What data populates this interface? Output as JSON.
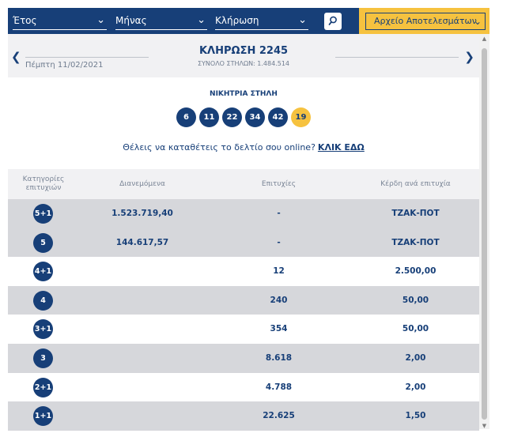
{
  "filters": {
    "year_label": "Έτος",
    "month_label": "Μήνας",
    "draw_label": "Κλήρωση",
    "archive_label": "Αρχείο Αποτελεσμάτων"
  },
  "draw": {
    "date": "Πέμπτη 11/02/2021",
    "title": "ΚΛΗΡΩΣΗ 2245",
    "total_columns": "ΣΥΝΟΛΟ ΣΤΗΛΩΝ: 1.484.514"
  },
  "winning": {
    "title": "ΝΙΚΗΤΡΙΑ ΣΤΗΛΗ",
    "numbers": [
      "6",
      "11",
      "22",
      "34",
      "42"
    ],
    "bonus": "19"
  },
  "promo": {
    "text": "Θέλεις να καταθέτεις το δελτίο σου online?",
    "link": "ΚΛΙΚ ΕΔΩ"
  },
  "table": {
    "headers": {
      "category": "Κατηγορίες επιτυχιών",
      "distributed": "Διανεμόμενα",
      "winners": "Επιτυχίες",
      "prize": "Κέρδη ανά επιτυχία"
    },
    "rows": [
      {
        "category": "5+1",
        "distributed": "1.523.719,40",
        "winners": "-",
        "prize": "ΤΖΑΚ-ΠΟΤ"
      },
      {
        "category": "5",
        "distributed": "144.617,57",
        "winners": "-",
        "prize": "ΤΖΑΚ-ΠΟΤ"
      },
      {
        "category": "4+1",
        "distributed": "",
        "winners": "12",
        "prize": "2.500,00"
      },
      {
        "category": "4",
        "distributed": "",
        "winners": "240",
        "prize": "50,00"
      },
      {
        "category": "3+1",
        "distributed": "",
        "winners": "354",
        "prize": "50,00"
      },
      {
        "category": "3",
        "distributed": "",
        "winners": "8.618",
        "prize": "2,00"
      },
      {
        "category": "2+1",
        "distributed": "",
        "winners": "4.788",
        "prize": "2,00"
      },
      {
        "category": "1+1",
        "distributed": "",
        "winners": "22.625",
        "prize": "1,50"
      }
    ]
  },
  "colors": {
    "primary": "#173f78",
    "accent": "#f6c23f",
    "row_alt": "#d6d7db"
  },
  "icons": {
    "search": "search-icon",
    "chevron": "chevron-down-icon",
    "prev": "chevron-left-icon",
    "next": "chevron-right-icon"
  }
}
